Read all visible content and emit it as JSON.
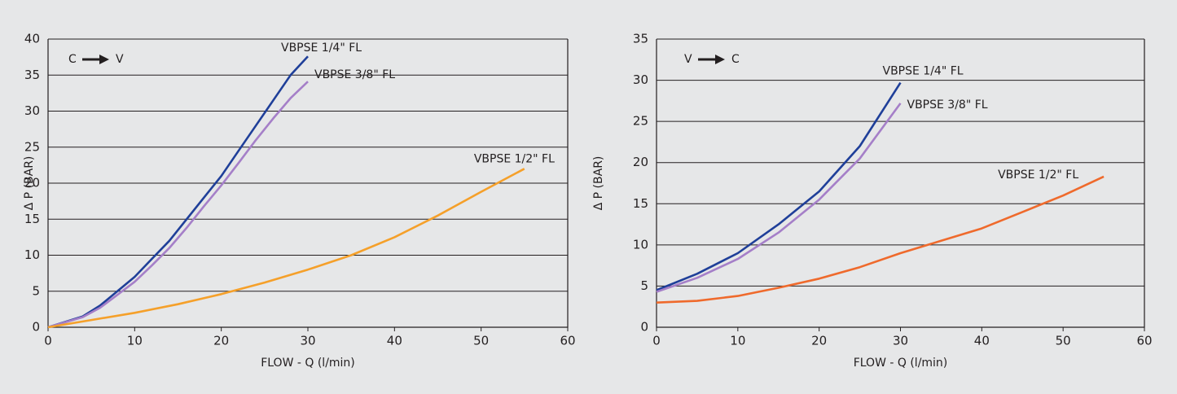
{
  "chart_data": [
    {
      "type": "line",
      "direction": {
        "from": "C",
        "to": "V"
      },
      "x_label": "FLOW - Q (l/min)",
      "y_label": "Δ P (BAR)",
      "xlim": [
        0,
        60
      ],
      "xticks": [
        0,
        10,
        20,
        30,
        40,
        50,
        60
      ],
      "ylim": [
        0,
        40
      ],
      "yticks": [
        0,
        5,
        10,
        15,
        20,
        25,
        30,
        35,
        40
      ],
      "grid": true,
      "series": [
        {
          "name": "VBPSE 1/4\" FL",
          "color": "#1f3f99",
          "x": [
            0,
            4,
            6,
            8,
            10,
            12,
            14,
            16,
            18,
            20,
            22,
            24,
            26,
            28,
            30
          ],
          "values": [
            0,
            1.5,
            3,
            5,
            7,
            9.5,
            12,
            15,
            18,
            21,
            24.5,
            28,
            31.5,
            35,
            37.6
          ]
        },
        {
          "name": "VBPSE 3/8\" FL",
          "color": "#a57fc8",
          "x": [
            0,
            4,
            6,
            8,
            10,
            12,
            14,
            16,
            18,
            20,
            22,
            24,
            26,
            28,
            30
          ],
          "values": [
            0,
            1.4,
            2.7,
            4.5,
            6.3,
            8.6,
            11,
            13.8,
            16.8,
            19.7,
            22.8,
            26,
            29,
            31.8,
            34.1
          ]
        },
        {
          "name": "VBPSE 1/2\" FL",
          "color": "#f5a02a",
          "x": [
            0,
            5,
            10,
            15,
            20,
            25,
            30,
            35,
            40,
            45,
            50,
            55
          ],
          "values": [
            0,
            1,
            2,
            3.2,
            4.6,
            6.2,
            8,
            10,
            12.5,
            15.5,
            18.8,
            22
          ]
        }
      ]
    },
    {
      "type": "line",
      "direction": {
        "from": "V",
        "to": "C"
      },
      "x_label": "FLOW - Q (l/min)",
      "y_label": "Δ P (BAR)",
      "xlim": [
        0,
        60
      ],
      "xticks": [
        0,
        10,
        20,
        30,
        40,
        50,
        60
      ],
      "ylim": [
        0,
        35
      ],
      "yticks": [
        0,
        5,
        10,
        15,
        20,
        25,
        30,
        35
      ],
      "grid": true,
      "series": [
        {
          "name": "VBPSE 1/4\" FL",
          "color": "#1f3f99",
          "x": [
            0,
            5,
            10,
            15,
            20,
            25,
            30
          ],
          "values": [
            4.5,
            6.5,
            9,
            12.5,
            16.5,
            22,
            29.7
          ]
        },
        {
          "name": "VBPSE 3/8\" FL",
          "color": "#a57fc8",
          "x": [
            0,
            5,
            10,
            15,
            20,
            25,
            30
          ],
          "values": [
            4.3,
            6,
            8.3,
            11.5,
            15.5,
            20.5,
            27.2
          ]
        },
        {
          "name": "VBPSE 1/2\" FL",
          "color": "#ef6a2c",
          "x": [
            0,
            5,
            10,
            15,
            20,
            25,
            30,
            35,
            40,
            45,
            50,
            55
          ],
          "values": [
            3,
            3.2,
            3.8,
            4.8,
            5.9,
            7.3,
            9,
            10.5,
            12,
            14,
            16,
            18.3
          ]
        }
      ]
    }
  ]
}
